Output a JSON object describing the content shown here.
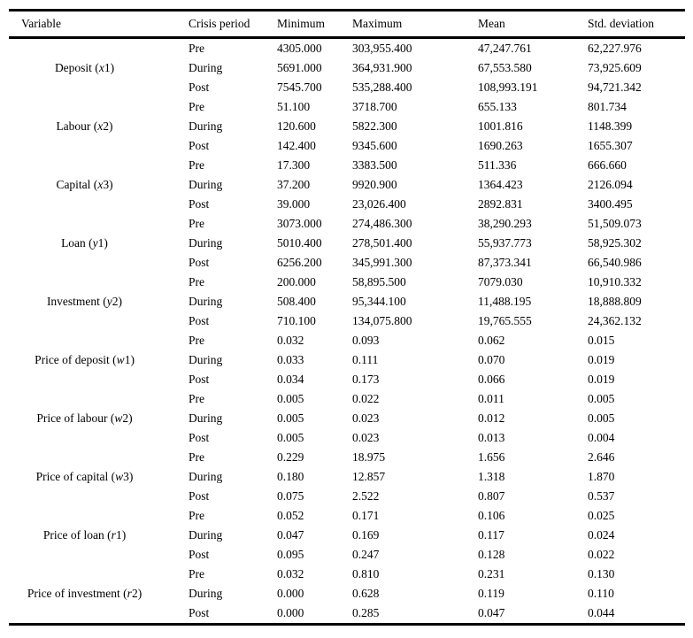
{
  "table": {
    "columns": [
      "Variable",
      "Crisis period",
      "Minimum",
      "Maximum",
      "Mean",
      "Std. deviation"
    ],
    "groups": [
      {
        "variable": {
          "prefix": "Deposit (",
          "symbol": "x",
          "suffix": "1)"
        },
        "rows": [
          {
            "period": "Pre",
            "minimum": "4305.000",
            "maximum": "303,955.400",
            "mean": "47,247.761",
            "std_deviation": "62,227.976"
          },
          {
            "period": "During",
            "minimum": "5691.000",
            "maximum": "364,931.900",
            "mean": "67,553.580",
            "std_deviation": "73,925.609"
          },
          {
            "period": "Post",
            "minimum": "7545.700",
            "maximum": "535,288.400",
            "mean": "108,993.191",
            "std_deviation": "94,721.342"
          }
        ]
      },
      {
        "variable": {
          "prefix": "Labour (",
          "symbol": "x",
          "suffix": "2)"
        },
        "rows": [
          {
            "period": "Pre",
            "minimum": "51.100",
            "maximum": "3718.700",
            "mean": "655.133",
            "std_deviation": "801.734"
          },
          {
            "period": "During",
            "minimum": "120.600",
            "maximum": "5822.300",
            "mean": "1001.816",
            "std_deviation": "1148.399"
          },
          {
            "period": "Post",
            "minimum": "142.400",
            "maximum": "9345.600",
            "mean": "1690.263",
            "std_deviation": "1655.307"
          }
        ]
      },
      {
        "variable": {
          "prefix": "Capital (",
          "symbol": "x",
          "suffix": "3)"
        },
        "rows": [
          {
            "period": "Pre",
            "minimum": "17.300",
            "maximum": "3383.500",
            "mean": "511.336",
            "std_deviation": "666.660"
          },
          {
            "period": "During",
            "minimum": "37.200",
            "maximum": "9920.900",
            "mean": "1364.423",
            "std_deviation": "2126.094"
          },
          {
            "period": "Post",
            "minimum": "39.000",
            "maximum": "23,026.400",
            "mean": "2892.831",
            "std_deviation": "3400.495"
          }
        ]
      },
      {
        "variable": {
          "prefix": "Loan (",
          "symbol": "y",
          "suffix": "1)"
        },
        "rows": [
          {
            "period": "Pre",
            "minimum": "3073.000",
            "maximum": "274,486.300",
            "mean": "38,290.293",
            "std_deviation": "51,509.073"
          },
          {
            "period": "During",
            "minimum": "5010.400",
            "maximum": "278,501.400",
            "mean": "55,937.773",
            "std_deviation": "58,925.302"
          },
          {
            "period": "Post",
            "minimum": "6256.200",
            "maximum": "345,991.300",
            "mean": "87,373.341",
            "std_deviation": "66,540.986"
          }
        ]
      },
      {
        "variable": {
          "prefix": "Investment (",
          "symbol": "y",
          "suffix": "2)"
        },
        "rows": [
          {
            "period": "Pre",
            "minimum": "200.000",
            "maximum": "58,895.500",
            "mean": "7079.030",
            "std_deviation": "10,910.332"
          },
          {
            "period": "During",
            "minimum": "508.400",
            "maximum": "95,344.100",
            "mean": "11,488.195",
            "std_deviation": "18,888.809"
          },
          {
            "period": "Post",
            "minimum": "710.100",
            "maximum": "134,075.800",
            "mean": "19,765.555",
            "std_deviation": "24,362.132"
          }
        ]
      },
      {
        "variable": {
          "prefix": "Price of deposit (",
          "symbol": "w",
          "suffix": "1)"
        },
        "rows": [
          {
            "period": "Pre",
            "minimum": "0.032",
            "maximum": "0.093",
            "mean": "0.062",
            "std_deviation": "0.015"
          },
          {
            "period": "During",
            "minimum": "0.033",
            "maximum": "0.111",
            "mean": "0.070",
            "std_deviation": "0.019"
          },
          {
            "period": "Post",
            "minimum": "0.034",
            "maximum": "0.173",
            "mean": "0.066",
            "std_deviation": "0.019"
          }
        ]
      },
      {
        "variable": {
          "prefix": "Price of labour (",
          "symbol": "w",
          "suffix": "2)"
        },
        "rows": [
          {
            "period": "Pre",
            "minimum": "0.005",
            "maximum": "0.022",
            "mean": "0.011",
            "std_deviation": "0.005"
          },
          {
            "period": "During",
            "minimum": "0.005",
            "maximum": "0.023",
            "mean": "0.012",
            "std_deviation": "0.005"
          },
          {
            "period": "Post",
            "minimum": "0.005",
            "maximum": "0.023",
            "mean": "0.013",
            "std_deviation": "0.004"
          }
        ]
      },
      {
        "variable": {
          "prefix": "Price of capital (",
          "symbol": "w",
          "suffix": "3)"
        },
        "rows": [
          {
            "period": "Pre",
            "minimum": "0.229",
            "maximum": "18.975",
            "mean": "1.656",
            "std_deviation": "2.646"
          },
          {
            "period": "During",
            "minimum": "0.180",
            "maximum": "12.857",
            "mean": "1.318",
            "std_deviation": "1.870"
          },
          {
            "period": "Post",
            "minimum": "0.075",
            "maximum": "2.522",
            "mean": "0.807",
            "std_deviation": "0.537"
          }
        ]
      },
      {
        "variable": {
          "prefix": "Price of loan (",
          "symbol": "r",
          "suffix": "1)"
        },
        "rows": [
          {
            "period": "Pre",
            "minimum": "0.052",
            "maximum": "0.171",
            "mean": "0.106",
            "std_deviation": "0.025"
          },
          {
            "period": "During",
            "minimum": "0.047",
            "maximum": "0.169",
            "mean": "0.117",
            "std_deviation": "0.024"
          },
          {
            "period": "Post",
            "minimum": "0.095",
            "maximum": "0.247",
            "mean": "0.128",
            "std_deviation": "0.022"
          }
        ]
      },
      {
        "variable": {
          "prefix": "Price of investment (",
          "symbol": "r",
          "suffix": "2)"
        },
        "rows": [
          {
            "period": "Pre",
            "minimum": "0.032",
            "maximum": "0.810",
            "mean": "0.231",
            "std_deviation": "0.130"
          },
          {
            "period": "During",
            "minimum": "0.000",
            "maximum": "0.628",
            "mean": "0.119",
            "std_deviation": "0.110"
          },
          {
            "period": "Post",
            "minimum": "0.000",
            "maximum": "0.285",
            "mean": "0.047",
            "std_deviation": "0.044"
          }
        ]
      }
    ]
  }
}
